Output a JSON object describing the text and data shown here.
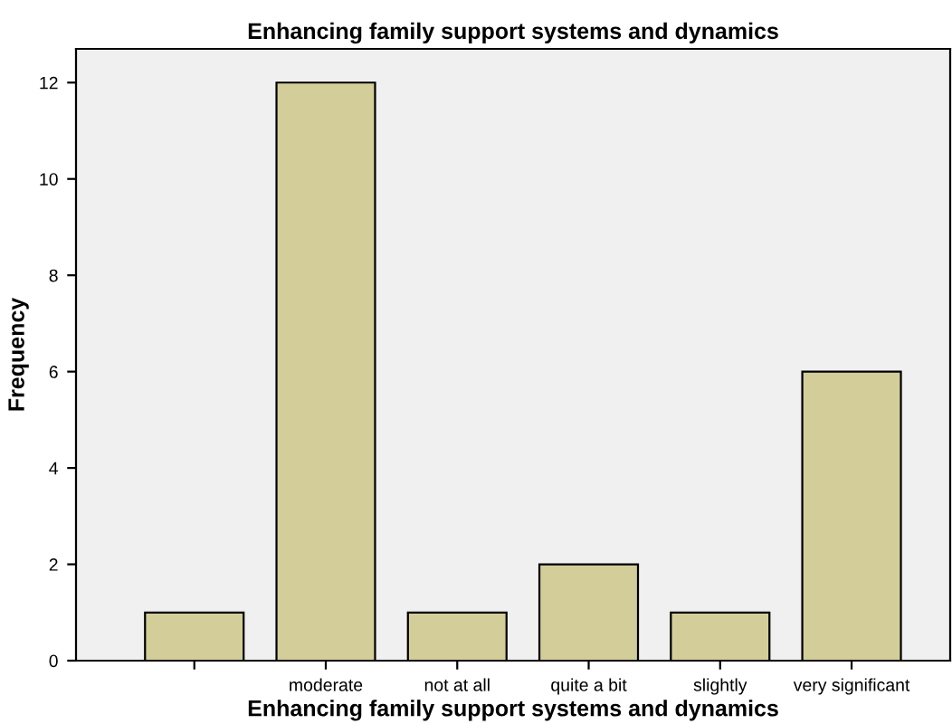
{
  "chart_data": {
    "type": "bar",
    "title": "Enhancing family support systems and dynamics",
    "xlabel": "Enhancing family support systems and dynamics",
    "ylabel": "Frequency",
    "categories": [
      null,
      "moderate",
      "not at all",
      "quite a bit",
      "slightly",
      "very significant"
    ],
    "values": [
      1,
      12,
      1,
      2,
      1,
      6
    ],
    "color": "#d3ce99",
    "ylim": [
      0,
      12.7
    ],
    "yticks": [
      0,
      2,
      4,
      6,
      8,
      10,
      12
    ],
    "grid": false,
    "legend": false
  }
}
